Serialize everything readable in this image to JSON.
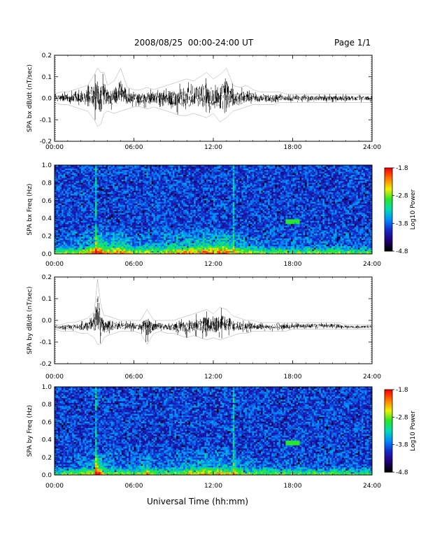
{
  "header": {
    "title": "2008/08/25  00:00-24:00 UT",
    "page": "Page 1/1"
  },
  "x_axis_title": "Universal Time (hh:mm)",
  "chart_data": [
    {
      "type": "line",
      "ylabel": "SPA bx dB/dt (nT/sec)",
      "xlim": [
        0,
        24
      ],
      "ylim": [
        -0.2,
        0.2
      ],
      "x_ticks": [
        "00:00",
        "06:00",
        "12:00",
        "18:00",
        "24:00"
      ],
      "y_ticks": [
        "0.2",
        "0.1",
        "0.0",
        "-0.1",
        "-0.2"
      ],
      "x": [
        0,
        0.5,
        1,
        1.5,
        2,
        2.5,
        3,
        3.25,
        3.5,
        3.75,
        4,
        4.5,
        5,
        5.5,
        6,
        6.5,
        7,
        7.5,
        8,
        8.5,
        9,
        9.5,
        10,
        10.5,
        11,
        11.5,
        12,
        12.5,
        13,
        13.5,
        14,
        14.5,
        15,
        15.5,
        16,
        16.5,
        17,
        17.5,
        18,
        18.5,
        19,
        19.5,
        20,
        20.5,
        21,
        21.5,
        22,
        22.5,
        23,
        23.5,
        24
      ],
      "series": [
        {
          "stat": "max",
          "values": [
            0.02,
            0.03,
            0.03,
            0.04,
            0.05,
            0.06,
            0.11,
            0.14,
            0.12,
            0.12,
            0.06,
            0.08,
            0.14,
            0.05,
            0.04,
            0.04,
            0.05,
            0.04,
            0.05,
            0.06,
            0.07,
            0.08,
            0.09,
            0.08,
            0.1,
            0.12,
            0.09,
            0.11,
            0.14,
            0.06,
            0.05,
            0.06,
            0.04,
            0.03,
            0.03,
            0.03,
            0.03,
            0.02,
            0.02,
            0.02,
            0.02,
            0.02,
            0.02,
            0.02,
            0.02,
            0.02,
            0.02,
            0.02,
            0.02,
            0.02,
            0.02
          ]
        },
        {
          "stat": "min",
          "values": [
            -0.02,
            -0.03,
            -0.03,
            -0.04,
            -0.05,
            -0.06,
            -0.1,
            -0.13,
            -0.12,
            -0.07,
            -0.06,
            -0.07,
            -0.06,
            -0.05,
            -0.04,
            -0.04,
            -0.05,
            -0.04,
            -0.05,
            -0.06,
            -0.07,
            -0.08,
            -0.08,
            -0.07,
            -0.08,
            -0.09,
            -0.07,
            -0.11,
            -0.09,
            -0.06,
            -0.05,
            -0.04,
            -0.03,
            -0.03,
            -0.03,
            -0.03,
            -0.02,
            -0.02,
            -0.02,
            -0.02,
            -0.02,
            -0.02,
            -0.02,
            -0.02,
            -0.02,
            -0.02,
            -0.02,
            -0.02,
            -0.02,
            -0.02,
            -0.02
          ]
        }
      ]
    },
    {
      "type": "heatmap",
      "ylabel": "SPA bx Freq (Hz)",
      "xlim": [
        0,
        24
      ],
      "ylim": [
        0.0,
        1.0
      ],
      "x_ticks": [
        "00:00",
        "06:00",
        "12:00",
        "18:00",
        "24:00"
      ],
      "y_ticks": [
        "1.0",
        "0.8",
        "0.6",
        "0.4",
        "0.2",
        "0.0"
      ],
      "colorbar": {
        "label": "Log10 Power",
        "range": [
          -4.8,
          -1.8
        ],
        "ticks": [
          "-1.8",
          "-2.8",
          "-3.8",
          "-4.8"
        ]
      }
    },
    {
      "type": "line",
      "ylabel": "SPA by dB/dt (nT/sec)",
      "xlim": [
        0,
        24
      ],
      "ylim": [
        -0.2,
        0.2
      ],
      "x_ticks": [
        "00:00",
        "06:00",
        "12:00",
        "18:00",
        "24:00"
      ],
      "y_ticks": [
        "0.2",
        "0.1",
        "0.0",
        "-0.1",
        "-0.2"
      ],
      "x": [
        0,
        0.5,
        1,
        1.5,
        2,
        2.5,
        3,
        3.25,
        3.5,
        3.75,
        4,
        4.5,
        5,
        5.5,
        6,
        6.5,
        7,
        7.5,
        8,
        8.5,
        9,
        9.5,
        10,
        10.5,
        11,
        11.5,
        12,
        12.5,
        13,
        13.5,
        14,
        14.5,
        15,
        15.5,
        16,
        16.5,
        17,
        17.5,
        18,
        18.5,
        19,
        19.5,
        20,
        20.5,
        21,
        21.5,
        22,
        22.5,
        23,
        23.5,
        24
      ],
      "series": [
        {
          "stat": "max",
          "values": [
            -0.02,
            -0.02,
            -0.01,
            -0.01,
            0.0,
            0.01,
            0.04,
            0.19,
            0.07,
            0.02,
            0.02,
            0.01,
            0.0,
            0.0,
            0.0,
            0.0,
            0.05,
            0.0,
            0.0,
            0.0,
            0.0,
            0.01,
            0.02,
            0.03,
            0.04,
            0.05,
            0.03,
            0.06,
            0.05,
            0.02,
            0.01,
            0.0,
            0.0,
            -0.01,
            -0.01,
            -0.01,
            -0.01,
            -0.01,
            -0.01,
            -0.01,
            -0.01,
            -0.01,
            -0.01,
            -0.01,
            -0.01,
            -0.01,
            -0.02,
            -0.02,
            -0.02,
            -0.02,
            -0.02
          ]
        },
        {
          "stat": "min",
          "values": [
            -0.04,
            -0.05,
            -0.05,
            -0.05,
            -0.06,
            -0.06,
            -0.08,
            -0.11,
            -0.11,
            -0.08,
            -0.07,
            -0.06,
            -0.05,
            -0.05,
            -0.05,
            -0.06,
            -0.11,
            -0.06,
            -0.05,
            -0.06,
            -0.06,
            -0.07,
            -0.08,
            -0.07,
            -0.08,
            -0.09,
            -0.08,
            -0.09,
            -0.08,
            -0.07,
            -0.06,
            -0.06,
            -0.05,
            -0.05,
            -0.05,
            -0.05,
            -0.05,
            -0.05,
            -0.04,
            -0.04,
            -0.04,
            -0.04,
            -0.04,
            -0.04,
            -0.04,
            -0.04,
            -0.04,
            -0.04,
            -0.04,
            -0.04,
            -0.04
          ]
        }
      ]
    },
    {
      "type": "heatmap",
      "ylabel": "SPA by Freq (Hz)",
      "xlim": [
        0,
        24
      ],
      "ylim": [
        0.0,
        1.0
      ],
      "x_ticks": [
        "00:00",
        "06:00",
        "12:00",
        "18:00",
        "24:00"
      ],
      "y_ticks": [
        "1.0",
        "0.8",
        "0.6",
        "0.4",
        "0.2",
        "0.0"
      ],
      "colorbar": {
        "label": "Log10 Power",
        "range": [
          -4.8,
          -1.8
        ],
        "ticks": [
          "-1.8",
          "-2.8",
          "-3.8",
          "-4.8"
        ]
      }
    }
  ]
}
